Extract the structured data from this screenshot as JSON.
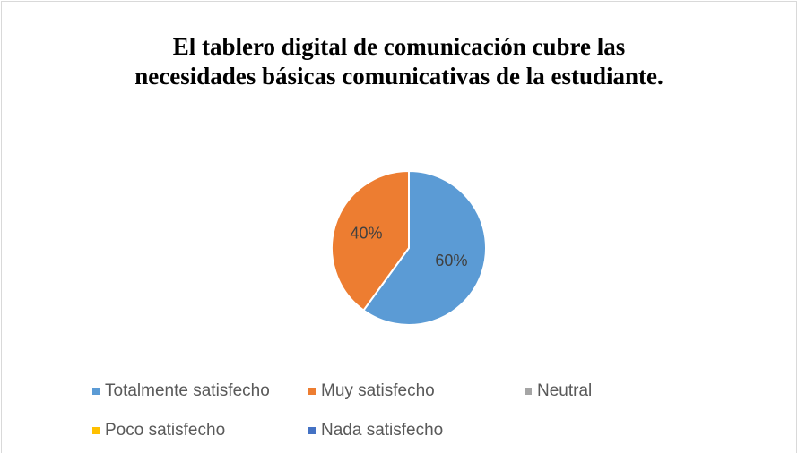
{
  "chart_data": {
    "type": "pie",
    "title": "El tablero digital de comunicación cubre las necesidades básicas comunicativas de la estudiante.",
    "categories": [
      "Totalmente satisfecho",
      "Muy satisfecho",
      "Neutral",
      "Poco satisfecho",
      "Nada satisfecho"
    ],
    "values": [
      60,
      40,
      0,
      0,
      0
    ],
    "value_labels": [
      "60%",
      "40%",
      null,
      null,
      null
    ],
    "colors": [
      "#5b9bd5",
      "#ed7d31",
      "#a5a5a5",
      "#ffc000",
      "#4472c4"
    ],
    "legend": "bottom"
  }
}
